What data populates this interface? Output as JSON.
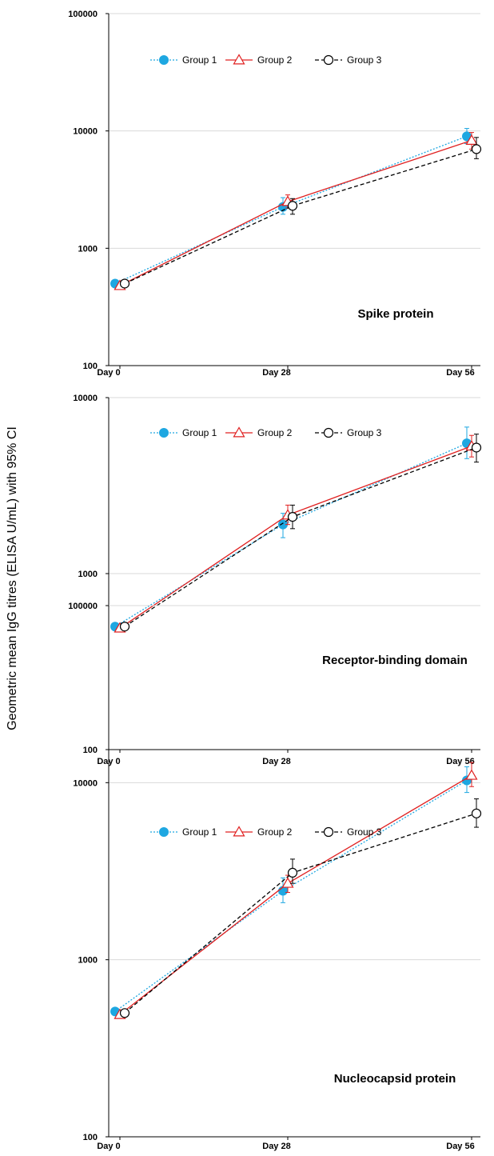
{
  "figure": {
    "ylabel": "Geometric mean IgG titres (ELISA U/mL) with 95% CI"
  },
  "series_styles": [
    {
      "name": "Group 1",
      "color": "#1ea7e1",
      "dash": "2,2",
      "marker": "filled-circle"
    },
    {
      "name": "Group 2",
      "color": "#e02020",
      "dash": "",
      "marker": "open-triangle"
    },
    {
      "name": "Group 3",
      "color": "#000000",
      "dash": "5,3",
      "marker": "open-circle"
    }
  ],
  "chart_data": [
    {
      "type": "line",
      "title": "Spike protein",
      "y_scale": "log",
      "ylim": [
        100,
        100000
      ],
      "y_ticks": [
        "100",
        "1000",
        "10000",
        "100000"
      ],
      "categories": [
        "Day 0",
        "Day 28",
        "Day 56"
      ],
      "grid": true,
      "legend": "top-left",
      "series": [
        {
          "name": "Group 1",
          "values": [
            500,
            2250,
            9000
          ],
          "ci_low": [
            null,
            1950,
            7800
          ],
          "ci_high": [
            null,
            2700,
            10500
          ]
        },
        {
          "name": "Group 2",
          "values": [
            480,
            2500,
            8300
          ],
          "ci_low": [
            null,
            2200,
            7000
          ],
          "ci_high": [
            null,
            2850,
            9700
          ]
        },
        {
          "name": "Group 3",
          "values": [
            500,
            2300,
            7000
          ],
          "ci_low": [
            null,
            1950,
            5800
          ],
          "ci_high": [
            null,
            2650,
            8800
          ]
        }
      ]
    },
    {
      "type": "line",
      "title": "Receptor-binding domain",
      "y_scale": "log",
      "ylim": [
        100,
        10000
      ],
      "y_ticks": [
        "100",
        "1000",
        "10000"
      ],
      "categories": [
        "Day 0",
        "Day 28",
        "Day 56"
      ],
      "grid": true,
      "legend": "top-left",
      "series": [
        {
          "name": "Group 1",
          "values": [
            500,
            1900,
            5500
          ],
          "ci_low": [
            null,
            1600,
            4500
          ],
          "ci_high": [
            null,
            2200,
            6800
          ]
        },
        {
          "name": "Group 2",
          "values": [
            490,
            2150,
            5300
          ],
          "ci_low": [
            null,
            1900,
            4600
          ],
          "ci_high": [
            null,
            2450,
            6100
          ]
        },
        {
          "name": "Group 3",
          "values": [
            500,
            2100,
            5200
          ],
          "ci_low": [
            null,
            1800,
            4300
          ],
          "ci_high": [
            null,
            2450,
            6200
          ]
        }
      ]
    },
    {
      "type": "line",
      "title": "Nucleocapsid protein",
      "y_scale": "log",
      "ylim": [
        100,
        100000
      ],
      "y_ticks": [
        "100",
        "1000",
        "10000",
        "100000"
      ],
      "categories": [
        "Day 0",
        "Day 28",
        "Day 56"
      ],
      "grid": true,
      "legend": "top-left",
      "series": [
        {
          "name": "Group 1",
          "values": [
            510,
            2450,
            10300
          ],
          "ci_low": [
            null,
            2100,
            8800
          ],
          "ci_high": [
            null,
            2900,
            12300
          ]
        },
        {
          "name": "Group 2",
          "values": [
            490,
            2700,
            11000
          ],
          "ci_low": [
            null,
            2400,
            9500
          ],
          "ci_high": [
            null,
            3000,
            13000
          ]
        },
        {
          "name": "Group 3",
          "values": [
            500,
            3100,
            6700
          ],
          "ci_low": [
            null,
            2700,
            5600
          ],
          "ci_high": [
            null,
            3700,
            8100
          ]
        }
      ]
    }
  ]
}
